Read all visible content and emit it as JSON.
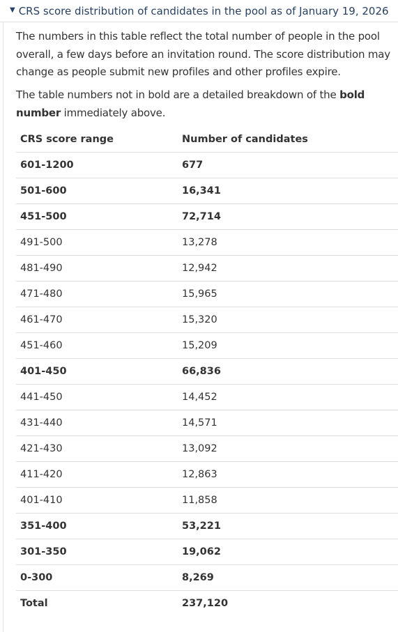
{
  "details": {
    "summary": "CRS score distribution of candidates in the pool as of January 19, 2026",
    "expanded": true
  },
  "intro": {
    "paragraph1": "The numbers in this table reflect the total number of people in the pool overall, a few days before an invitation round. The score distribution may change as people submit new profiles and other profiles expire.",
    "paragraph2_pre": "The table numbers not in bold are a detailed breakdown of the ",
    "paragraph2_bold": "bold number",
    "paragraph2_post": " immediately above."
  },
  "table": {
    "headers": [
      "CRS score range",
      "Number of candidates"
    ],
    "rows": [
      {
        "range": "601-1200",
        "count": "677",
        "bold": true
      },
      {
        "range": "501-600",
        "count": "16,341",
        "bold": true
      },
      {
        "range": "451-500",
        "count": "72,714",
        "bold": true
      },
      {
        "range": "491-500",
        "count": "13,278",
        "bold": false
      },
      {
        "range": "481-490",
        "count": "12,942",
        "bold": false
      },
      {
        "range": "471-480",
        "count": "15,965",
        "bold": false
      },
      {
        "range": "461-470",
        "count": "15,320",
        "bold": false
      },
      {
        "range": "451-460",
        "count": "15,209",
        "bold": false
      },
      {
        "range": "401-450",
        "count": "66,836",
        "bold": true
      },
      {
        "range": "441-450",
        "count": "14,452",
        "bold": false
      },
      {
        "range": "431-440",
        "count": "14,571",
        "bold": false
      },
      {
        "range": "421-430",
        "count": "13,092",
        "bold": false
      },
      {
        "range": "411-420",
        "count": "12,863",
        "bold": false
      },
      {
        "range": "401-410",
        "count": "11,858",
        "bold": false
      },
      {
        "range": "351-400",
        "count": "53,221",
        "bold": true
      },
      {
        "range": "301-350",
        "count": "19,062",
        "bold": true
      },
      {
        "range": "0-300",
        "count": "8,269",
        "bold": true
      },
      {
        "range": "Total",
        "count": "237,120",
        "bold": true
      }
    ]
  }
}
